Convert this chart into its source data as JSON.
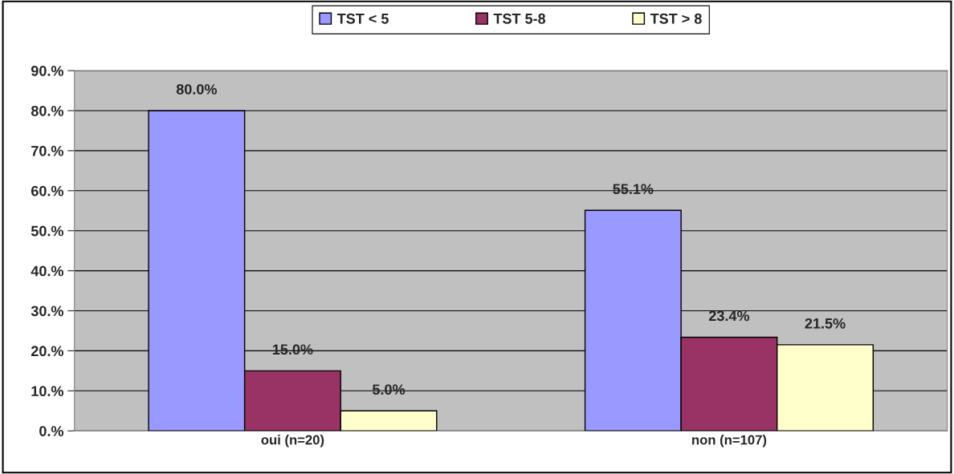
{
  "chart_data": {
    "type": "bar",
    "categories": [
      "oui (n=20)",
      "non (n=107)"
    ],
    "series": [
      {
        "name": "TST < 5",
        "color": "#9999ff",
        "values": [
          80.0,
          55.1
        ],
        "value_labels": [
          "80.0%",
          "55.1%"
        ]
      },
      {
        "name": "TST 5-8",
        "color": "#993366",
        "values": [
          15.0,
          23.4
        ],
        "value_labels": [
          "15.0%",
          "23.4%"
        ]
      },
      {
        "name": "TST > 8",
        "color": "#ffffcc",
        "values": [
          5.0,
          21.5
        ],
        "value_labels": [
          "5.0%",
          "21.5%"
        ]
      }
    ],
    "ylim": [
      0,
      90
    ],
    "yticks": [
      {
        "value": 0,
        "label": "0.%"
      },
      {
        "value": 10,
        "label": "10.%"
      },
      {
        "value": 20,
        "label": "20.%"
      },
      {
        "value": 30,
        "label": "30.%"
      },
      {
        "value": 40,
        "label": "40.%"
      },
      {
        "value": 50,
        "label": "50.%"
      },
      {
        "value": 60,
        "label": "60.%"
      },
      {
        "value": 70,
        "label": "70.%"
      },
      {
        "value": 80,
        "label": "80.%"
      },
      {
        "value": 90,
        "label": "90.%"
      }
    ],
    "grid": "y",
    "legend": "top"
  }
}
